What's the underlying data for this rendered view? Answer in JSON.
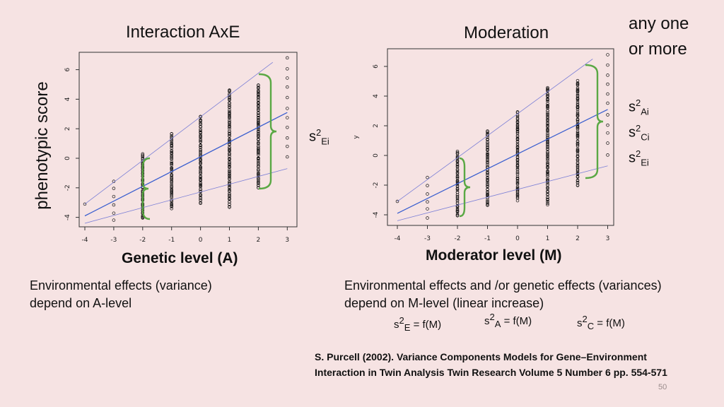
{
  "titles": {
    "left": "Interaction AxE",
    "right": "Moderation",
    "any": [
      "any one",
      "or more"
    ]
  },
  "ylabel_left": "phenotypic score",
  "ylabel_right": "y",
  "xlabel_left": "Genetic level (A)",
  "xlabel_right": "Moderator level (M)",
  "sym_left": {
    "base": "s",
    "sup": "2",
    "sub": "Ei"
  },
  "sym_right": [
    {
      "base": "s",
      "sup": "2",
      "sub": "Ai"
    },
    {
      "base": "s",
      "sup": "2",
      "sub": "Ci"
    },
    {
      "base": "s",
      "sup": "2",
      "sub": "Ei"
    }
  ],
  "desc_left": [
    "Environmental effects (variance)",
    "depend on A-level"
  ],
  "desc_right": [
    "Environmental effects and /or genetic effects (variances)",
    "depend on M-level (linear increase)"
  ],
  "formulas": [
    {
      "base": "s",
      "sup": "2",
      "sub": "E",
      "rest": "= f(M)"
    },
    {
      "base": "s",
      "sup": "2",
      "sub": "A",
      "rest": "= f(M)"
    },
    {
      "base": "s",
      "sup": "2",
      "sub": "C",
      "rest": "= f(M)"
    }
  ],
  "reference": "S. Purcell (2002). Variance Components Models for Gene–Environment Interaction in Twin Analysis Twin Research Volume 5 Number 6 pp. 554-571",
  "page_number": "50",
  "colors": {
    "background": "#f6e3e3",
    "fit": "#3b5fcf",
    "bound": "#7b7fd6",
    "brace": "#5aa844",
    "points": "#111111"
  },
  "chart_data": [
    {
      "type": "scatter",
      "title": "Interaction AxE",
      "xlabel": "Genetic level (A)",
      "ylabel": "phenotypic score",
      "xlim": [
        -4,
        3
      ],
      "ylim": [
        -4.4,
        7
      ],
      "xticks": [
        "-4",
        "-3",
        "-2",
        "-1",
        "0",
        "1",
        "2",
        "3"
      ],
      "yticks": [
        "-4",
        "-2",
        "0",
        "2",
        "4",
        "6"
      ],
      "columns": [
        {
          "x": -4,
          "ymin": -3.1,
          "ymax": -3.1
        },
        {
          "x": -3,
          "ymin": -4.2,
          "ymax": -1.5
        },
        {
          "x": -2,
          "ymin": -4.1,
          "ymax": 0.3
        },
        {
          "x": -1,
          "ymin": -3.4,
          "ymax": 1.7
        },
        {
          "x": 0,
          "ymin": -3.0,
          "ymax": 2.9
        },
        {
          "x": 1,
          "ymin": -3.3,
          "ymax": 4.6
        },
        {
          "x": 2,
          "ymin": -2.0,
          "ymax": 5.0
        },
        {
          "x": 3,
          "ymin": 0.1,
          "ymax": 6.8
        }
      ],
      "series": [
        {
          "name": "fit",
          "x": [
            -4,
            3
          ],
          "y": [
            -3.9,
            3.1
          ]
        },
        {
          "name": "upper",
          "x": [
            -4,
            2.5
          ],
          "y": [
            -3.1,
            6.5
          ]
        },
        {
          "name": "lower",
          "x": [
            -4,
            3
          ],
          "y": [
            -4.4,
            -0.7
          ]
        }
      ]
    },
    {
      "type": "scatter",
      "title": "Moderation",
      "xlabel": "Moderator level (M)",
      "ylabel": "y",
      "xlim": [
        -4,
        3
      ],
      "ylim": [
        -4.4,
        7
      ],
      "xticks": [
        "-4",
        "-3",
        "-2",
        "-1",
        "0",
        "1",
        "2",
        "3"
      ],
      "yticks": [
        "-4",
        "-2",
        "0",
        "2",
        "4",
        "6"
      ],
      "columns": [
        {
          "x": -4,
          "ymin": -3.1,
          "ymax": -3.1
        },
        {
          "x": -3,
          "ymin": -4.2,
          "ymax": -1.5
        },
        {
          "x": -2,
          "ymin": -4.1,
          "ymax": 0.3
        },
        {
          "x": -1,
          "ymin": -3.4,
          "ymax": 1.7
        },
        {
          "x": 0,
          "ymin": -3.0,
          "ymax": 2.9
        },
        {
          "x": 1,
          "ymin": -3.3,
          "ymax": 4.6
        },
        {
          "x": 2,
          "ymin": -2.0,
          "ymax": 5.0
        },
        {
          "x": 3,
          "ymin": 0.1,
          "ymax": 6.8
        }
      ],
      "series": [
        {
          "name": "fit",
          "x": [
            -4,
            3
          ],
          "y": [
            -3.9,
            3.1
          ]
        },
        {
          "name": "upper",
          "x": [
            -4,
            2.5
          ],
          "y": [
            -3.1,
            6.5
          ]
        },
        {
          "name": "lower",
          "x": [
            -4,
            3
          ],
          "y": [
            -4.4,
            -0.7
          ]
        }
      ]
    }
  ]
}
